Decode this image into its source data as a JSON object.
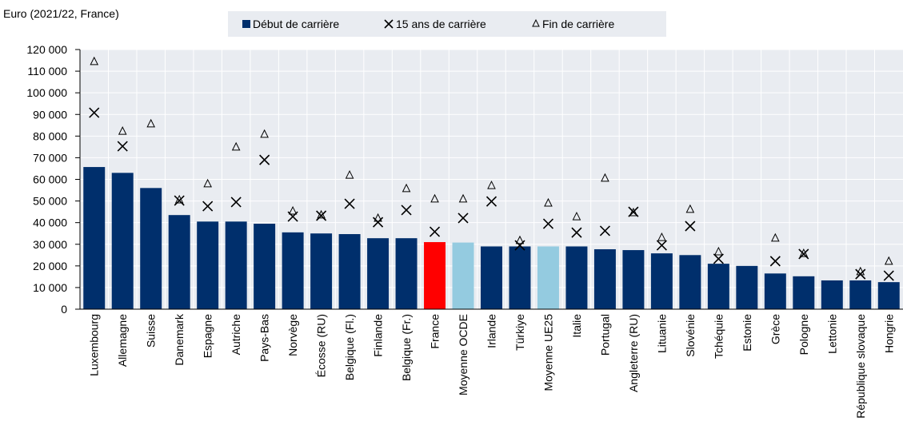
{
  "chart_data": {
    "type": "bar",
    "y_axis_label": "Euro (2021/22, France)",
    "categories": [
      "Luxembourg",
      "Allemagne",
      "Suisse",
      "Danemark",
      "Espagne",
      "Autriche",
      "Pays-Bas",
      "Norvège",
      "Écosse (RU)",
      "Belgique (Fl.)",
      "Finlande",
      "Belgique (Fr.)",
      "France",
      "Moyenne OCDE",
      "Irlande",
      "Türkiye",
      "Moyenne UE25",
      "Italie",
      "Portugal",
      "Angleterre (RU)",
      "Lituanie",
      "Slovénie",
      "Tchéquie",
      "Estonie",
      "Grèce",
      "Pologne",
      "Lettonie",
      "République slovaque",
      "Hongrie"
    ],
    "series": [
      {
        "name": "Début de carrière",
        "marker": "bar",
        "color": "#002f6c",
        "colors": [
          "#002f6c",
          "#002f6c",
          "#002f6c",
          "#002f6c",
          "#002f6c",
          "#002f6c",
          "#002f6c",
          "#002f6c",
          "#002f6c",
          "#002f6c",
          "#002f6c",
          "#002f6c",
          "#ff0000",
          "#94cbe0",
          "#002f6c",
          "#002f6c",
          "#94cbe0",
          "#002f6c",
          "#002f6c",
          "#002f6c",
          "#002f6c",
          "#002f6c",
          "#002f6c",
          "#002f6c",
          "#002f6c",
          "#002f6c",
          "#002f6c",
          "#002f6c",
          "#002f6c"
        ],
        "values": [
          65700,
          63000,
          56000,
          43500,
          40500,
          40500,
          39500,
          35500,
          35000,
          34700,
          32800,
          32800,
          31000,
          30800,
          29000,
          29000,
          29000,
          29000,
          27700,
          27300,
          25800,
          25000,
          21000,
          20000,
          16500,
          15200,
          13300,
          13300,
          12500
        ]
      },
      {
        "name": "15 ans de carrière",
        "marker": "x",
        "color": "#000000",
        "values": [
          90800,
          75300,
          null,
          50200,
          47600,
          49500,
          69000,
          42800,
          43200,
          48700,
          40200,
          45800,
          35800,
          42100,
          49800,
          29500,
          39500,
          35400,
          36200,
          45000,
          29500,
          38400,
          23300,
          null,
          22200,
          25500,
          null,
          16200,
          15500
        ]
      },
      {
        "name": "Fin de carrière",
        "marker": "triangle",
        "color": "#000000",
        "values": [
          114500,
          82300,
          85700,
          50600,
          58000,
          75000,
          80900,
          45400,
          43600,
          62000,
          42100,
          55800,
          51000,
          51000,
          57200,
          31800,
          49100,
          42800,
          60600,
          44700,
          33200,
          46200,
          26600,
          null,
          32900,
          25800,
          null,
          17400,
          22200
        ]
      }
    ],
    "ylim": [
      0,
      120000
    ],
    "yticks": [
      0,
      {
        "value": 10000,
        "label": "10 000"
      },
      {
        "value": 20000,
        "label": "20 000"
      },
      {
        "value": 30000,
        "label": "30 000"
      },
      {
        "value": 40000,
        "label": "40 000"
      },
      {
        "value": 50000,
        "label": "50 000"
      },
      {
        "value": 60000,
        "label": "60 000"
      },
      {
        "value": 70000,
        "label": "70 000"
      },
      {
        "value": 80000,
        "label": "80 000"
      },
      {
        "value": 90000,
        "label": "90 000"
      },
      {
        "value": 100000,
        "label": "100 000"
      },
      {
        "value": 110000,
        "label": "110 000"
      },
      {
        "value": 120000,
        "label": "120 000"
      }
    ],
    "grid": true
  }
}
